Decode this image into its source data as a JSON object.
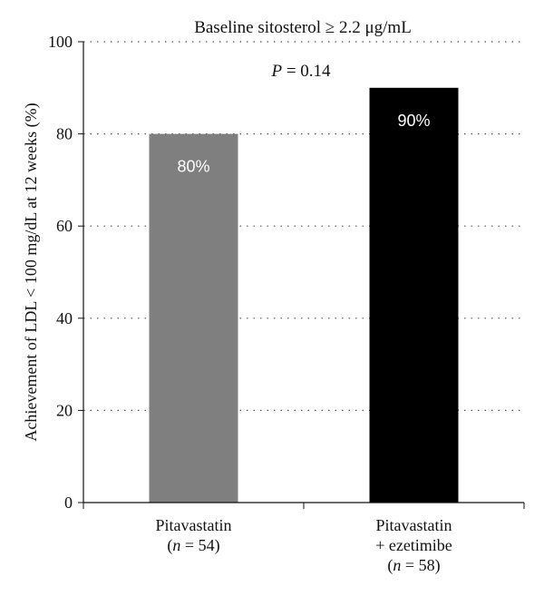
{
  "chart_data": {
    "type": "bar",
    "title": "Baseline sitosterol ≥ 2.2 μg/mL",
    "ylabel": "Achievement of LDL < 100 mg/dL at 12 weeks (%)",
    "xlabel": "",
    "ylim": [
      0,
      100
    ],
    "yticks": [
      0,
      20,
      40,
      60,
      80,
      100
    ],
    "grid": "dotted-horizontal",
    "categories": [
      {
        "lines": [
          "Pitavastatin",
          "(n = 54)"
        ]
      },
      {
        "lines": [
          "Pitavastatin",
          "+ ezetimibe",
          "(n = 58)"
        ]
      }
    ],
    "values": [
      80,
      90
    ],
    "value_labels": [
      "80%",
      "90%"
    ],
    "bar_colors": [
      "#7f7f7f",
      "#000000"
    ],
    "annotation": "P = 0.14"
  }
}
